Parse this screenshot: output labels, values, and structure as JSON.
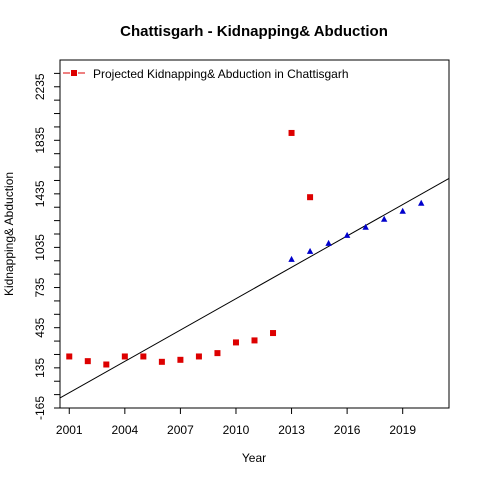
{
  "chart_data": {
    "type": "scatter",
    "title": "Chattisgarh  -  Kidnapping& Abduction",
    "xlabel": "Year",
    "ylabel": "Kidnapping& Abduction",
    "xlim": [
      2000.5,
      2021.5
    ],
    "ylim": [
      -165,
      2435
    ],
    "x_ticks": [
      2001,
      2004,
      2007,
      2010,
      2013,
      2016,
      2019
    ],
    "y_ticks": [
      -165,
      135,
      435,
      735,
      1035,
      1435,
      1835,
      2235
    ],
    "y_minor_ticks": [
      -65,
      35,
      235,
      335,
      535,
      635,
      835,
      935,
      1135,
      1235,
      1335,
      1535,
      1635,
      1735,
      1935,
      2035,
      2135,
      2335
    ],
    "grid": false,
    "legend_position": "top-left",
    "series": [
      {
        "name": "",
        "marker": "square",
        "color": "#dd0000",
        "x": [
          2001,
          2002,
          2003,
          2004,
          2005,
          2006,
          2007,
          2008,
          2009,
          2010,
          2011,
          2012,
          2013,
          2014
        ],
        "y": [
          220,
          185,
          160,
          220,
          220,
          180,
          195,
          220,
          245,
          325,
          340,
          395,
          1890,
          1410
        ]
      },
      {
        "name": "Projected Kidnapping& Abduction  in  Chattisgarh",
        "marker": "triangle",
        "color": "#0000cc",
        "x": [
          2013,
          2014,
          2015,
          2016,
          2017,
          2018,
          2019,
          2020
        ],
        "y": [
          945,
          1005,
          1065,
          1125,
          1185,
          1245,
          1305,
          1365
        ]
      }
    ],
    "trend_line": {
      "x": [
        2000.5,
        2021.5
      ],
      "y": [
        -90,
        1550
      ],
      "color": "#000000"
    }
  }
}
